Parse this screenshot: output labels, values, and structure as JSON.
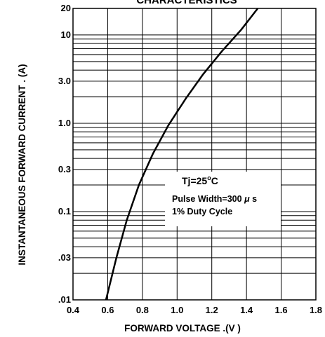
{
  "chart_data": {
    "type": "line",
    "title": "CHARACTERISTICS",
    "xlabel": "FORWARD VOLTAGE .(V )",
    "ylabel": "INSTANTANEOUS  FORWARD CURRENT . (A)",
    "x_scale": "linear",
    "y_scale": "log",
    "xlim": [
      0.4,
      1.8
    ],
    "ylim": [
      0.01,
      20
    ],
    "x_ticks": [
      "0.4",
      "0.6",
      "0.8",
      "1.0",
      "1.2",
      "1.4",
      "1.6",
      "1.8"
    ],
    "x_tick_values": [
      0.4,
      0.6,
      0.8,
      1.0,
      1.2,
      1.4,
      1.6,
      1.8
    ],
    "y_ticks": [
      "20",
      "10",
      "3.0",
      "1.0",
      "0.3",
      "0.1",
      ".03",
      ".01"
    ],
    "y_tick_values": [
      20,
      10,
      3,
      1,
      0.3,
      0.1,
      0.03,
      0.01
    ],
    "grid": true,
    "series": [
      {
        "name": "",
        "x": [
          0.59,
          0.65,
          0.71,
          0.78,
          0.86,
          0.95,
          1.05,
          1.15,
          1.26,
          1.37,
          1.465
        ],
        "y": [
          0.01,
          0.03,
          0.08,
          0.2,
          0.45,
          0.95,
          1.9,
          3.6,
          6.6,
          11.5,
          20
        ]
      }
    ],
    "annotations": {
      "line1": "Tj=25",
      "degree": "o",
      "line1_unit": "C",
      "line2a": "Pulse Width=300",
      "mu": "μ",
      "line2b": "s",
      "line3": "1% Duty  Cycle"
    }
  }
}
